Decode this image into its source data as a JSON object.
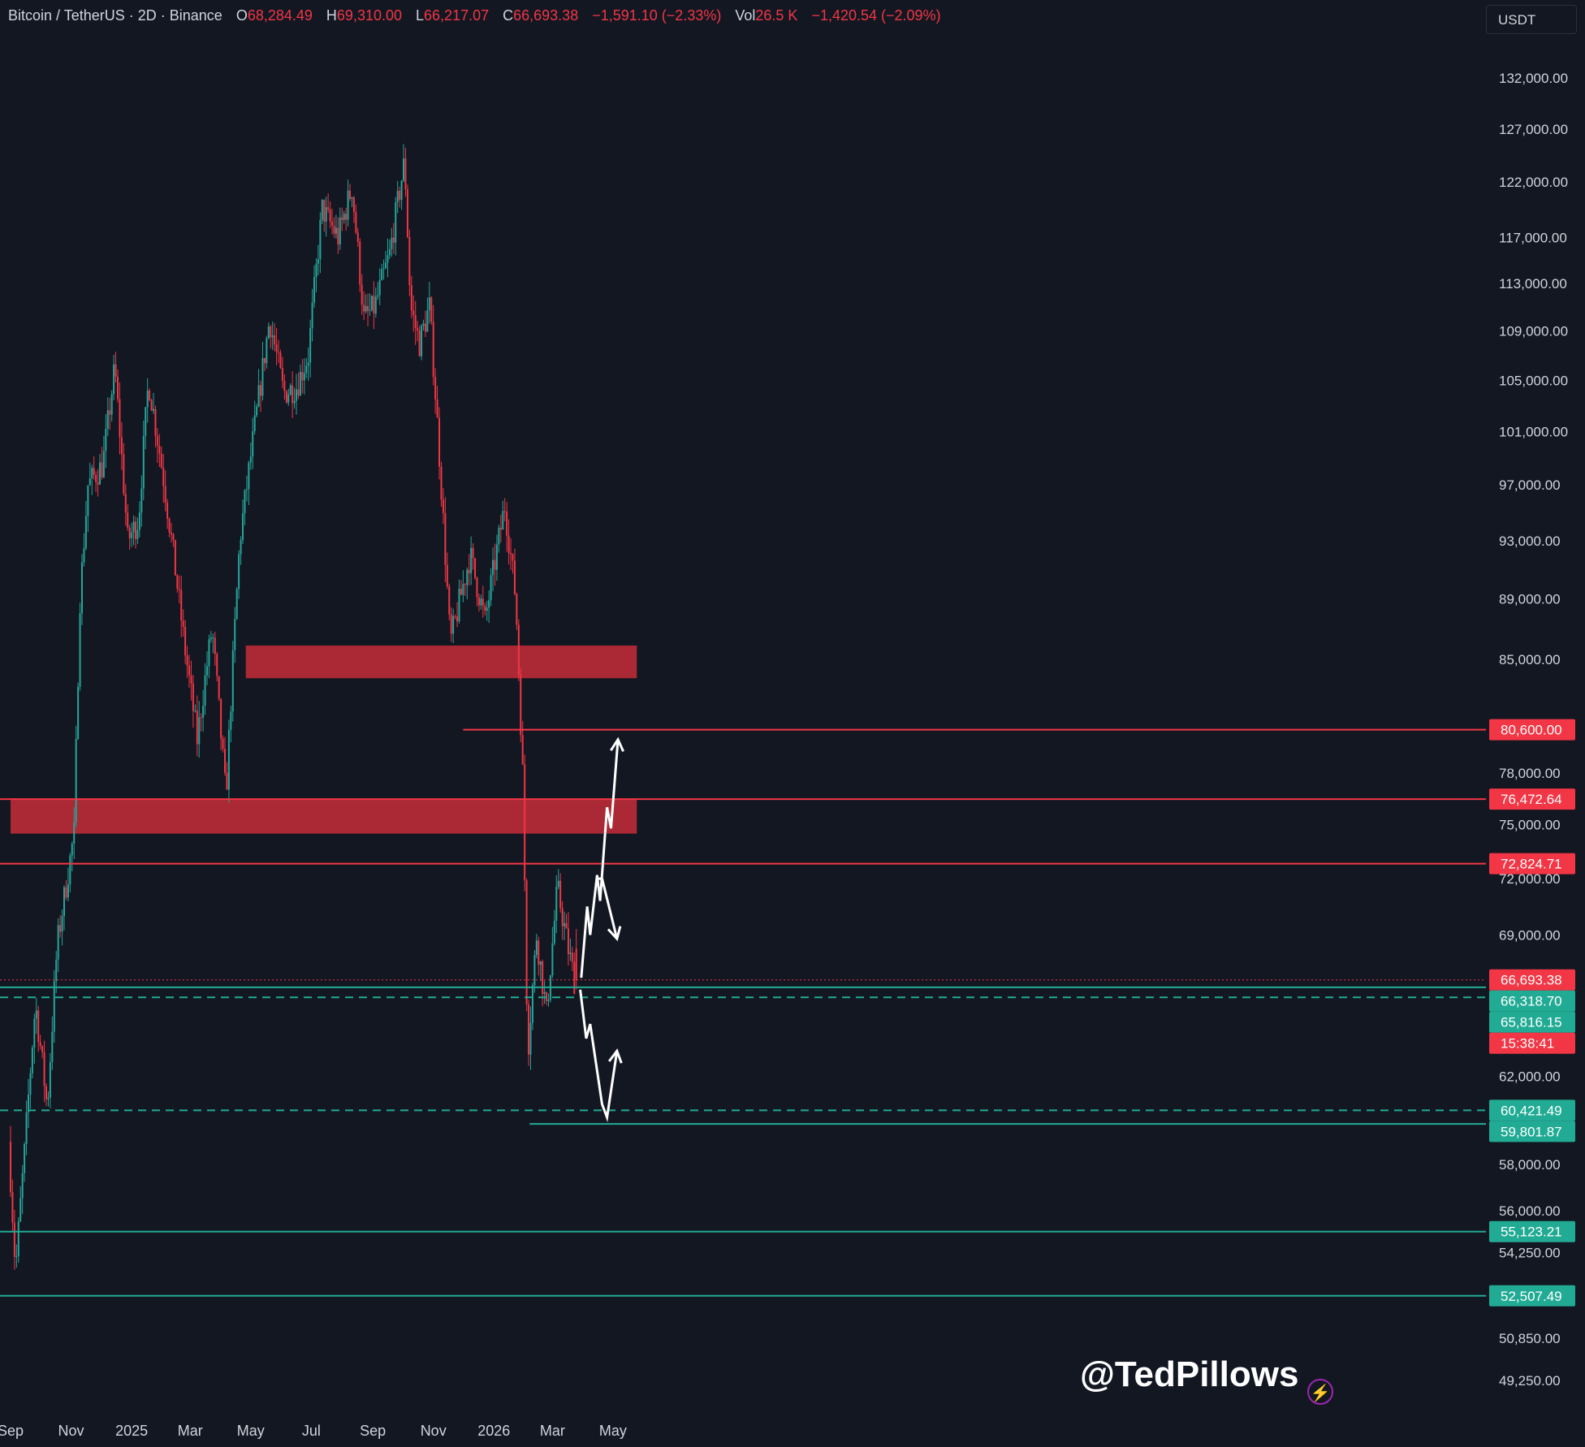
{
  "header": {
    "symbol": "Bitcoin / TetherUS · 2D · Binance",
    "open_label": "O",
    "open": "68,284.49",
    "high_label": "H",
    "high": "69,310.00",
    "low_label": "L",
    "low": "66,217.07",
    "close_label": "C",
    "close": "66,693.38",
    "change": "−1,591.10 (−2.33%)",
    "vol_label": "Vol",
    "vol": "26.5 K",
    "vol_change": "−1,420.54 (−2.09%)"
  },
  "currency": "USDT",
  "watermark": "@TedPillows",
  "colors": {
    "background": "#131722",
    "up": "#26a69a",
    "down": "#f23645",
    "zone": "#b22a37",
    "support": "#22ab94",
    "projection": "#ffffff"
  },
  "chart_data": {
    "type": "candlestick",
    "title": "Bitcoin / TetherUS · 2D · Binance",
    "x_ticks": [
      "Sep",
      "Nov",
      "2025",
      "Mar",
      "May",
      "Jul",
      "Sep",
      "Nov",
      "2026",
      "Mar",
      "May"
    ],
    "y_ticks": [
      "132,000.00",
      "127,000.00",
      "122,000.00",
      "117,000.00",
      "113,000.00",
      "109,000.00",
      "105,000.00",
      "101,000.00",
      "97,000.00",
      "93,000.00",
      "89,000.00",
      "85,000.00",
      "78,000.00",
      "75,000.00",
      "72,000.00",
      "69,000.00",
      "62,000.00",
      "58,000.00",
      "56,000.00",
      "54,250.00",
      "50,850.00",
      "49,250.00"
    ],
    "y_scale": "log",
    "ylim": [
      48500,
      139000
    ],
    "grid": false,
    "series": [
      {
        "anchors": [
          [
            "2024-09-01",
            59000
          ],
          [
            "2024-09-08",
            53500
          ],
          [
            "2024-09-17",
            58500
          ],
          [
            "2024-09-28",
            65500
          ],
          [
            "2024-10-10",
            60500
          ],
          [
            "2024-10-20",
            68500
          ],
          [
            "2024-10-30",
            72000
          ],
          [
            "2024-11-06",
            74500
          ],
          [
            "2024-11-12",
            89000
          ],
          [
            "2024-11-20",
            97000
          ],
          [
            "2024-12-05",
            98500
          ],
          [
            "2024-12-17",
            106000
          ],
          [
            "2024-12-30",
            93000
          ],
          [
            "2025-01-10",
            94500
          ],
          [
            "2025-01-20",
            105000
          ],
          [
            "2025-02-05",
            97000
          ],
          [
            "2025-02-25",
            86000
          ],
          [
            "2025-03-10",
            80000
          ],
          [
            "2025-03-25",
            87000
          ],
          [
            "2025-04-08",
            76500
          ],
          [
            "2025-04-22",
            93000
          ],
          [
            "2025-05-10",
            103000
          ],
          [
            "2025-05-22",
            110000
          ],
          [
            "2025-06-05",
            104000
          ],
          [
            "2025-06-18",
            104500
          ],
          [
            "2025-06-30",
            107000
          ],
          [
            "2025-07-14",
            119500
          ],
          [
            "2025-07-30",
            117000
          ],
          [
            "2025-08-13",
            121500
          ],
          [
            "2025-08-25",
            110000
          ],
          [
            "2025-09-05",
            111000
          ],
          [
            "2025-09-20",
            115500
          ],
          [
            "2025-10-05",
            124000
          ],
          [
            "2025-10-11",
            111000
          ],
          [
            "2025-10-20",
            108000
          ],
          [
            "2025-10-30",
            111000
          ],
          [
            "2025-11-05",
            104000
          ],
          [
            "2025-11-20",
            86000
          ],
          [
            "2025-12-10",
            92000
          ],
          [
            "2025-12-25",
            87500
          ],
          [
            "2026-01-14",
            95500
          ],
          [
            "2026-01-25",
            89000
          ],
          [
            "2026-02-01",
            78000
          ],
          [
            "2026-02-06",
            63000
          ],
          [
            "2026-02-15",
            69000
          ],
          [
            "2026-02-25",
            65000
          ],
          [
            "2026-03-08",
            71500
          ],
          [
            "2026-03-18",
            68500
          ],
          [
            "2026-03-25",
            66693
          ]
        ],
        "last": {
          "open": 68284.49,
          "high": 69310,
          "low": 66217.07,
          "close": 66693.38
        }
      }
    ],
    "zones": [
      {
        "from": 83800,
        "to": 85900,
        "start": "2025-04-26",
        "end": "2026-05-25"
      },
      {
        "from": 74500,
        "to": 76472.64,
        "start": "2024-09-01",
        "end": "2026-05-25"
      }
    ],
    "levels": [
      {
        "price": 80600.0,
        "label": "80,600.00",
        "style": "solid",
        "color": "#f23645",
        "start": "2025-12-01"
      },
      {
        "price": 76472.64,
        "label": "76,472.64",
        "style": "solid",
        "color": "#f23645"
      },
      {
        "price": 72824.71,
        "label": "72,824.71",
        "style": "solid",
        "color": "#f23645"
      },
      {
        "price": 66693.38,
        "label": "66,693.38",
        "label2": "15:38:41",
        "style": "dotted",
        "color": "#f23645"
      },
      {
        "price": 66318.7,
        "label": "66,318.70",
        "style": "solid",
        "color": "#22ab94"
      },
      {
        "price": 65816.15,
        "label": "65,816.15",
        "style": "dashed",
        "color": "#22ab94"
      },
      {
        "price": 60421.49,
        "label": "60,421.49",
        "style": "dashed",
        "color": "#22ab94"
      },
      {
        "price": 59801.87,
        "label": "59,801.87",
        "style": "solid",
        "color": "#22ab94",
        "start": "2026-02-06"
      },
      {
        "price": 55123.21,
        "label": "55,123.21",
        "style": "solid",
        "color": "#22ab94"
      },
      {
        "price": 52507.49,
        "label": "52,507.49",
        "style": "solid",
        "color": "#22ab94"
      }
    ],
    "projections": [
      {
        "name": "bullish",
        "points": [
          [
            "2026-03-30",
            66800
          ],
          [
            "2026-04-05",
            70500
          ],
          [
            "2026-04-08",
            69000
          ],
          [
            "2026-04-15",
            72200
          ],
          [
            "2026-04-18",
            70800
          ],
          [
            "2026-04-25",
            76000
          ],
          [
            "2026-04-29",
            74800
          ],
          [
            "2026-05-06",
            80000
          ]
        ]
      },
      {
        "name": "rejection",
        "points": [
          [
            "2026-04-15",
            72000
          ],
          [
            "2026-04-20",
            72000
          ],
          [
            "2026-05-05",
            68800
          ]
        ]
      },
      {
        "name": "bearish",
        "points": [
          [
            "2026-03-29",
            66200
          ],
          [
            "2026-04-04",
            63800
          ],
          [
            "2026-04-08",
            64500
          ],
          [
            "2026-04-20",
            60700
          ],
          [
            "2026-04-25",
            60100
          ],
          [
            "2026-05-05",
            63200
          ]
        ]
      }
    ]
  }
}
